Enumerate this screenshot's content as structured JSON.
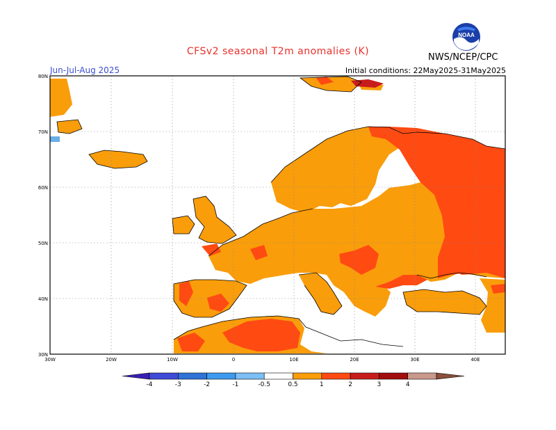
{
  "header": {
    "title": "CFSv2 seasonal T2m anomalies (K)",
    "season": "Jun-Jul-Aug 2025",
    "initial_conditions": "Initial conditions: 22May2025-31May2025",
    "agency": "NWS/NCEP/CPC",
    "logo_text": "NOAA"
  },
  "axes": {
    "lon_labels": [
      "30W",
      "20W",
      "10W",
      "0",
      "10E",
      "20E",
      "30E",
      "40E"
    ],
    "lat_labels": [
      "30N",
      "40N",
      "50N",
      "60N",
      "70N",
      "80N"
    ]
  },
  "colorbar": {
    "labels": [
      "-4",
      "-3",
      "-2",
      "-1",
      "-0.5",
      "0.5",
      "1",
      "2",
      "3",
      "4"
    ],
    "colors": [
      "#3a1fb5",
      "#3f4ad6",
      "#2f73d6",
      "#3d9aee",
      "#7bbff5",
      "#ffffff",
      "#f99d0b",
      "#ff4a12",
      "#c81c1c",
      "#a20d0d",
      "#c9998c",
      "#8b4f3c"
    ]
  },
  "legend_colors": {
    "anom_05_1": "#f99d0b",
    "anom_1_2": "#ff4a12",
    "anom_neg": "#6aaee8"
  }
}
